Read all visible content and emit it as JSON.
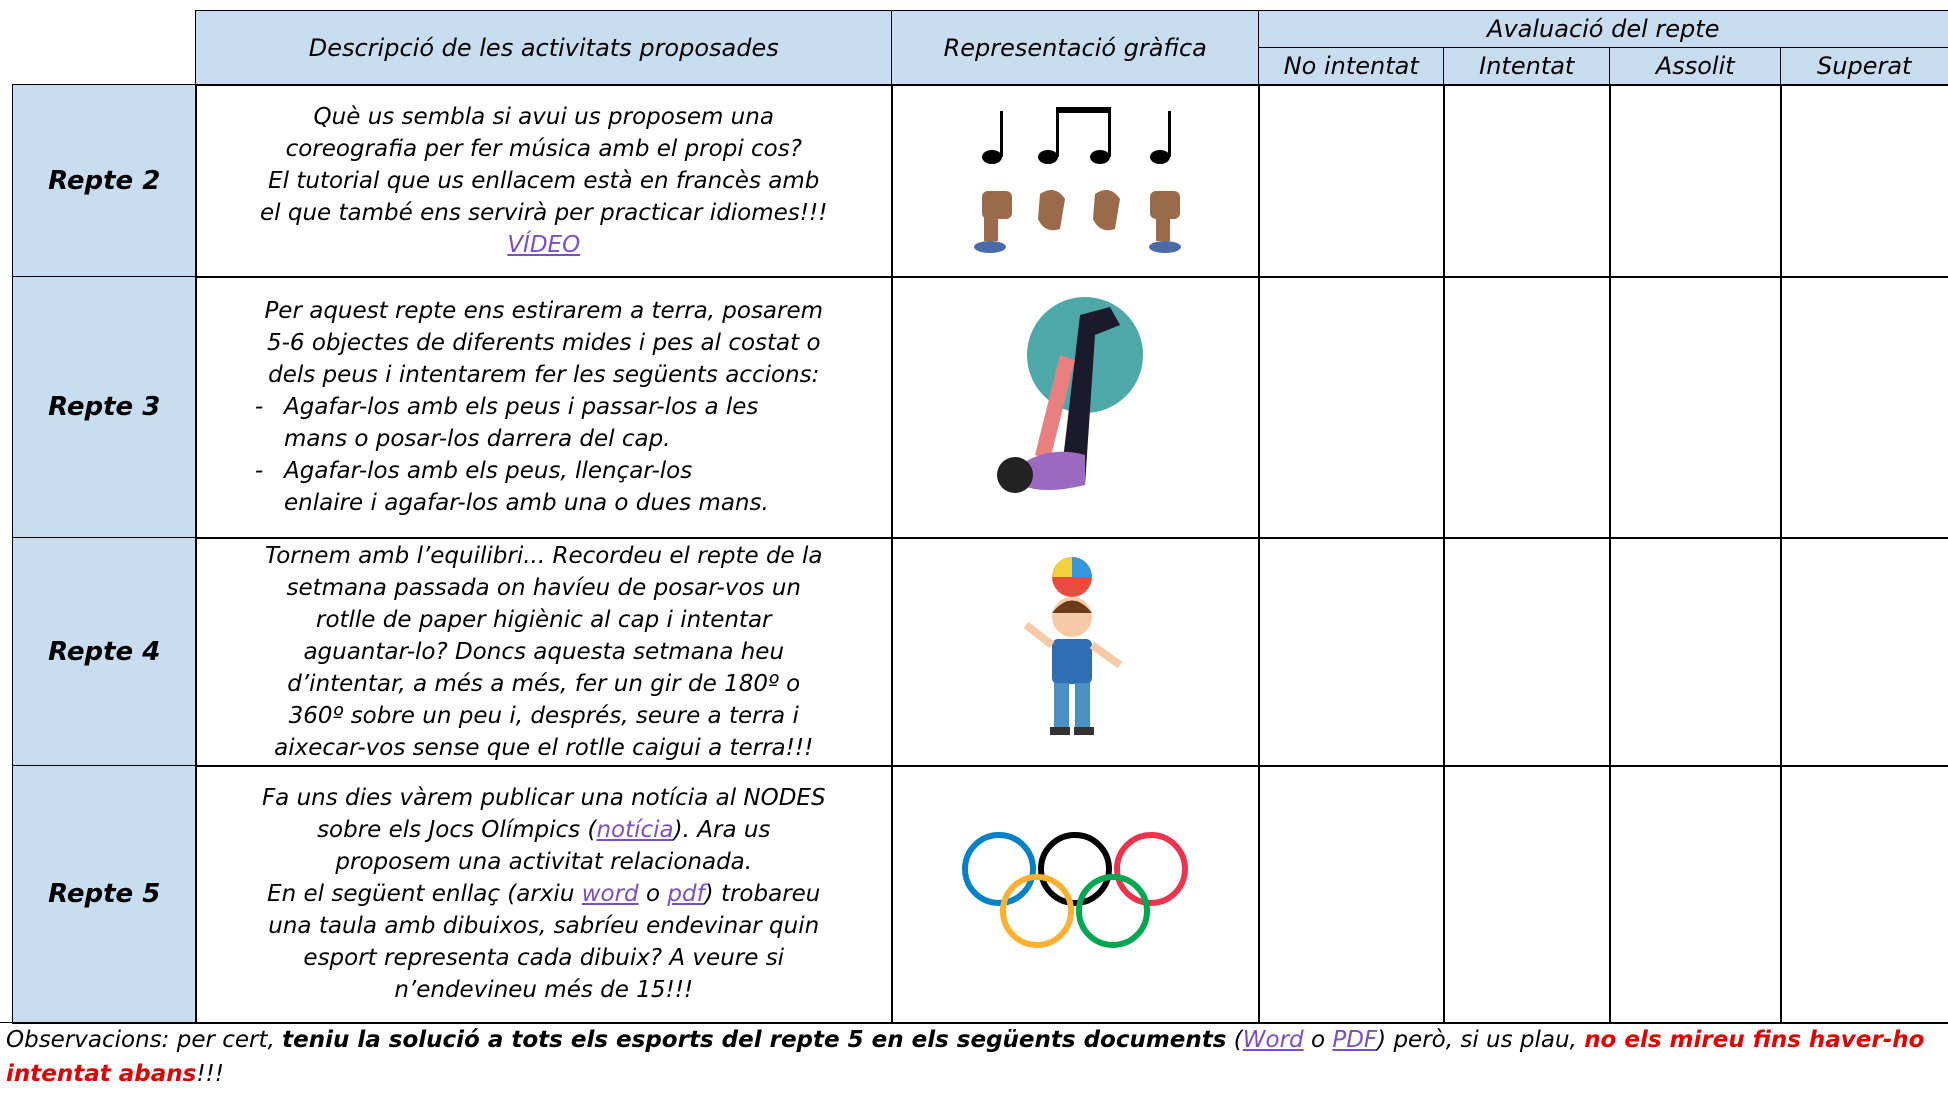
{
  "header": {
    "description": "Descripció de les activitats proposades",
    "graphic": "Representació gràfica",
    "evaluation": "Avaluació del repte",
    "levels": [
      "No intentat",
      "Intentat",
      "Assolit",
      "Superat"
    ]
  },
  "rows": [
    {
      "label": "Repte 2",
      "lines": [
        [
          {
            "text": "Què us sembla si avui us proposem una"
          }
        ],
        [
          {
            "text": "coreografia per fer música amb el propi cos?"
          }
        ],
        [
          {
            "text": "El tutorial que us enllacem està en francès amb"
          }
        ],
        [
          {
            "text": "el que també ens servirà per practicar idiomes!!!"
          }
        ],
        [
          {
            "link": "VÍDEO"
          }
        ]
      ]
    },
    {
      "label": "Repte 3",
      "lines": [
        [
          {
            "text": "Per aquest repte ens estirarem a terra, posarem"
          }
        ],
        [
          {
            "text": "5-6 objectes de diferents mides i pes al costat o"
          }
        ],
        [
          {
            "text": "dels peus i intentarem fer les següents accions:"
          }
        ]
      ],
      "bullets": [
        {
          "marker": "-",
          "lines": [
            "Agafar-los amb els peus i passar-los a les",
            "mans o posar-los darrera del cap."
          ]
        },
        {
          "marker": "-",
          "lines": [
            "Agafar-los amb els peus, llençar-los",
            "enlaire i agafar-los amb una o dues mans."
          ]
        }
      ]
    },
    {
      "label": "Repte 4",
      "lines": [
        [
          {
            "text": "Tornem amb l’equilibri... Recordeu el repte de la"
          }
        ],
        [
          {
            "text": "setmana passada on havíeu de posar-vos un"
          }
        ],
        [
          {
            "text": "rotlle de paper higiènic al cap i intentar"
          }
        ],
        [
          {
            "text": "aguantar-lo? Doncs aquesta setmana heu"
          }
        ],
        [
          {
            "text": "d’intentar, a més a més, fer un gir de 180º o"
          }
        ],
        [
          {
            "text": "360º sobre un peu i, després, seure  a terra i"
          }
        ],
        [
          {
            "text": "aixecar-vos sense que el rotlle caigui a terra!!!"
          }
        ]
      ]
    },
    {
      "label": "Repte 5",
      "lines": [
        [
          {
            "text": "Fa uns dies vàrem publicar una notícia al NODES"
          }
        ],
        [
          {
            "text": "sobre els Jocs Olímpics ("
          },
          {
            "link": "notícia"
          },
          {
            "text": "). Ara us"
          }
        ],
        [
          {
            "text": "proposem una activitat relacionada."
          }
        ],
        [
          {
            "text": "En el següent enllaç (arxiu "
          },
          {
            "link": "word"
          },
          {
            "text": " o "
          },
          {
            "link": "pdf"
          },
          {
            "text": ") trobareu"
          }
        ],
        [
          {
            "text": "una taula amb dibuixos, sabríeu endevinar quin"
          }
        ],
        [
          {
            "text": "esport representa cada dibuix? A veure si"
          }
        ],
        [
          {
            "text": "n’endevineu més de 15!!!"
          }
        ]
      ]
    }
  ],
  "observations": [
    {
      "text": "Observacions: per cert, "
    },
    {
      "bold": "teniu la solució a tots els esports del repte 5 en els següents documents"
    },
    {
      "text": " ("
    },
    {
      "link": "Word"
    },
    {
      "text": " o "
    },
    {
      "link": "PDF"
    },
    {
      "text": ") però, si us plau, "
    },
    {
      "alert": "no els mireu fins haver-ho intentat abans"
    },
    {
      "text": "!!!"
    }
  ]
}
